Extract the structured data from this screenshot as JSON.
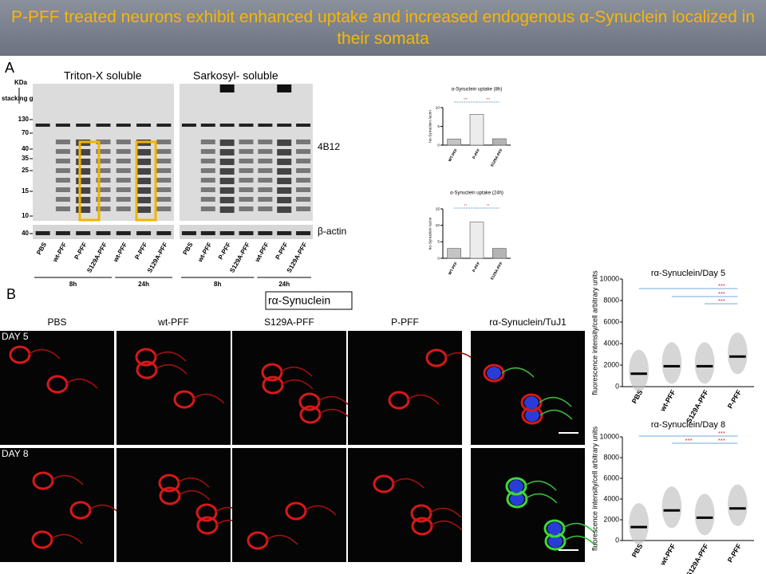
{
  "header": {
    "title": "P-PFF treated neurons exhibit enhanced uptake and increased endogenous α-Synuclein localized in their somata"
  },
  "panel_a": {
    "label": "A",
    "blot_titles": [
      "Triton-X soluble",
      "Sarkosyl- soluble"
    ],
    "kda_label": "KDa",
    "stacking_label": "stacking gel",
    "markers": [
      "130",
      "70",
      "40",
      "35",
      "25",
      "15",
      "10",
      "40"
    ],
    "band_labels": [
      "4B12",
      "β-actin"
    ],
    "lanes": [
      "PBS",
      "wt-PFF",
      "P-PFF",
      "S129A-PFF",
      "wt-PFF",
      "P-PFF",
      "S129A-PFF"
    ],
    "timepoints": [
      "8h",
      "24h"
    ]
  },
  "chart_data": [
    {
      "type": "bar",
      "title": "α-Synuclein uptake (8h)",
      "y_label": "hα-Synuclein /actin",
      "categories": [
        "WT-PFF",
        "P-PFF",
        "S129A-PFF"
      ],
      "values": [
        1.6,
        8.2,
        1.7
      ],
      "colors": [
        "#c4c4c4",
        "#ececec",
        "#b4b4b4"
      ],
      "ylim": [
        0,
        10
      ],
      "yticks": [
        0,
        5,
        10
      ],
      "annotations": [
        "***",
        "***"
      ]
    },
    {
      "type": "bar",
      "title": "α-Synuclein uptake (24h)",
      "y_label": "hα-Synuclein /actin",
      "categories": [
        "WT-PFF",
        "P-PFF",
        "S129A-PFF"
      ],
      "values": [
        3,
        11,
        3
      ],
      "colors": [
        "#c4c4c4",
        "#ececec",
        "#b4b4b4"
      ],
      "ylim": [
        0,
        15
      ],
      "yticks": [
        0,
        5,
        10,
        15
      ],
      "annotations": [
        "**",
        "**"
      ]
    },
    {
      "type": "dot",
      "title": "rα-Synuclein/Day 5",
      "y_label": "fluorescence intensity/cell arbitrary units",
      "categories": [
        "PBS",
        "wt-PFF",
        "S129A-PFF",
        "P-PFF"
      ],
      "values": [
        1200,
        1900,
        1900,
        2800
      ],
      "ylim": [
        0,
        10000
      ],
      "yticks": [
        0,
        2000,
        4000,
        6000,
        8000,
        10000
      ],
      "annotations": [
        "***",
        "***",
        "***"
      ]
    },
    {
      "type": "dot",
      "title": "rα-Synuclein/Day 8",
      "y_label": "fluorescence intensity/cell arbitrary units",
      "categories": [
        "PBS",
        "wt-PFF",
        "S129A-PFF",
        "P-PFF"
      ],
      "values": [
        1300,
        2900,
        2200,
        3100
      ],
      "ylim": [
        0,
        10000
      ],
      "yticks": [
        0,
        2000,
        4000,
        6000,
        8000,
        10000
      ],
      "annotations": [
        "***",
        "***",
        "***"
      ]
    }
  ],
  "panel_b": {
    "label": "B",
    "stain_label": "rα-Synuclein",
    "columns": [
      "PBS",
      "wt-PFF",
      "S129A-PFF",
      "P-PFF",
      "rα-Synuclein/TuJ1"
    ],
    "rows": [
      "DAY 5",
      "DAY 8"
    ]
  }
}
